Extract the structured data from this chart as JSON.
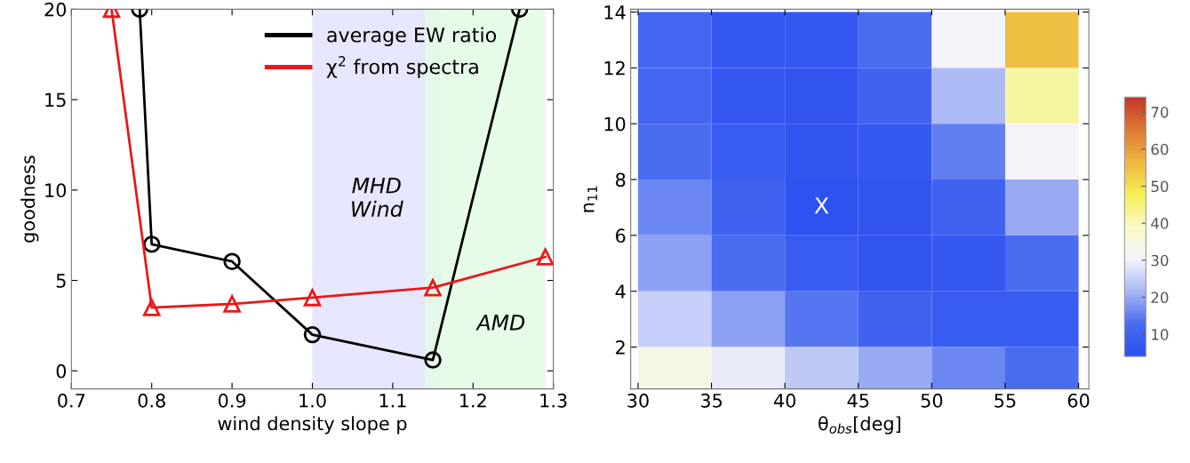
{
  "chart_data": [
    {
      "type": "line",
      "xlabel": "wind density slope p",
      "ylabel": "goodness",
      "xlim": [
        0.7,
        1.3
      ],
      "ylim": [
        -1,
        20
      ],
      "xticks": [
        {
          "value": 0.7,
          "label": "0.7"
        },
        {
          "value": 0.8,
          "label": "0.8"
        },
        {
          "value": 0.9,
          "label": "0.9"
        },
        {
          "value": 1.0,
          "label": "1.0"
        },
        {
          "value": 1.1,
          "label": "1.1"
        },
        {
          "value": 1.2,
          "label": "1.2"
        },
        {
          "value": 1.3,
          "label": "1.3"
        }
      ],
      "yticks": [
        0,
        5,
        10,
        15,
        20
      ],
      "legend": "top right",
      "grid": false,
      "series": [
        {
          "name": "average EW ratio",
          "color": "#000000",
          "marker": "circle",
          "x": [
            0.785,
            0.8,
            0.9,
            1.0,
            1.15,
            1.258
          ],
          "values": [
            20,
            7,
            6.05,
            2,
            0.6,
            20
          ]
        },
        {
          "name": "χ$^{2}$ from spectra",
          "color": "#e8191a",
          "marker": "triangle",
          "x": [
            0.75,
            0.8,
            0.9,
            1.0,
            1.15,
            1.29
          ],
          "values": [
            20,
            3.5,
            3.7,
            4.05,
            4.6,
            6.3
          ]
        }
      ],
      "bands": [
        {
          "axis": "x",
          "from": 1.0,
          "to": 1.16,
          "label": "MHD\nWind",
          "color": "#e2e2fb"
        },
        {
          "axis": "x",
          "from": 1.14,
          "to": 1.29,
          "label": "AMD",
          "color": "#e2fae4"
        }
      ]
    },
    {
      "type": "heatmap",
      "xlabel": "θ$_{obs}$[deg]",
      "ylabel": "n$_{11}$",
      "xlim": [
        29.5,
        60.7
      ],
      "ylim": [
        0.5,
        14.1
      ],
      "xticks": [
        30,
        35,
        40,
        45,
        50,
        55,
        60
      ],
      "yticks": [
        2,
        4,
        6,
        8,
        10,
        12,
        14
      ],
      "x": [
        32.5,
        37.5,
        42.5,
        47.5,
        52.5,
        57.5
      ],
      "y": [
        13,
        11,
        9,
        7,
        5,
        3,
        1
      ],
      "cells": [
        [
          11,
          7,
          7,
          13,
          30,
          55
        ],
        [
          11,
          7,
          6,
          10,
          22,
          42
        ],
        [
          13,
          8,
          6,
          7,
          15,
          30
        ],
        [
          16,
          10,
          5,
          6,
          10,
          20
        ],
        [
          19,
          13,
          8,
          6,
          7,
          13
        ],
        [
          25,
          19,
          14,
          10,
          8,
          8
        ],
        [
          34,
          29,
          24,
          20,
          16,
          13
        ]
      ],
      "clim": [
        4,
        74
      ],
      "cticks": [
        10,
        20,
        30,
        40,
        50,
        60,
        70
      ],
      "annotations": [
        "X"
      ]
    }
  ]
}
